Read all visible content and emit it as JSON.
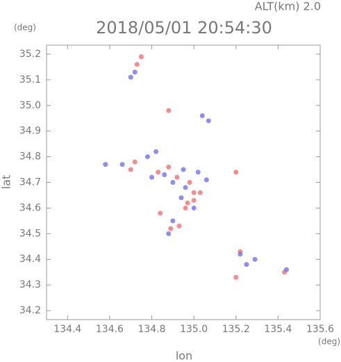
{
  "chart_data": {
    "type": "scatter",
    "title": "2018/05/01 20:54:30",
    "subtitle": "ALT(km) 2.0",
    "y_unit": "(deg)",
    "x_unit": "(deg)",
    "xlabel": "lon",
    "ylabel": "lat",
    "xlim": [
      134.3,
      135.6
    ],
    "ylim": [
      34.165,
      35.235
    ],
    "xticks": [
      {
        "value": 134.4,
        "label": "134.4"
      },
      {
        "value": 134.6,
        "label": "134.6"
      },
      {
        "value": 134.8,
        "label": "134.8"
      },
      {
        "value": 135.0,
        "label": "135.0"
      },
      {
        "value": 135.2,
        "label": "135.2"
      },
      {
        "value": 135.4,
        "label": "135.4"
      },
      {
        "value": 135.6,
        "label": "135.6"
      }
    ],
    "yticks": [
      {
        "value": 34.2,
        "label": "34.2"
      },
      34.3,
      34.4,
      34.5,
      34.6,
      34.7,
      34.8,
      34.9,
      {
        "value": 35.0,
        "label": "35.0"
      },
      35.1,
      35.2
    ],
    "series": [
      {
        "color": "#f07070",
        "x": [
          134.75,
          134.73,
          134.88,
          134.72,
          134.7,
          134.83,
          134.88,
          134.92,
          134.98,
          135.2,
          135.0,
          134.97,
          134.96,
          135.0,
          134.84,
          134.89,
          134.93,
          135.22,
          135.2,
          135.43,
          135.03
        ],
        "y": [
          35.19,
          35.16,
          34.98,
          34.78,
          34.75,
          34.74,
          34.76,
          34.72,
          34.7,
          34.74,
          34.66,
          34.62,
          34.6,
          34.63,
          34.58,
          34.52,
          34.53,
          34.43,
          34.33,
          34.35,
          34.66
        ]
      },
      {
        "color": "#7070f0",
        "x": [
          134.72,
          134.7,
          134.58,
          134.66,
          134.78,
          134.8,
          134.86,
          134.9,
          134.95,
          135.07,
          135.04,
          135.02,
          134.96,
          135.0,
          134.94,
          134.88,
          134.9,
          135.25,
          135.29,
          135.22,
          135.06,
          134.82,
          135.44
        ],
        "y": [
          35.13,
          35.11,
          34.77,
          34.77,
          34.8,
          34.72,
          34.73,
          34.7,
          34.75,
          34.94,
          34.96,
          34.74,
          34.68,
          34.6,
          34.64,
          34.5,
          34.55,
          34.38,
          34.4,
          34.42,
          34.71,
          34.82,
          34.36
        ]
      }
    ]
  }
}
